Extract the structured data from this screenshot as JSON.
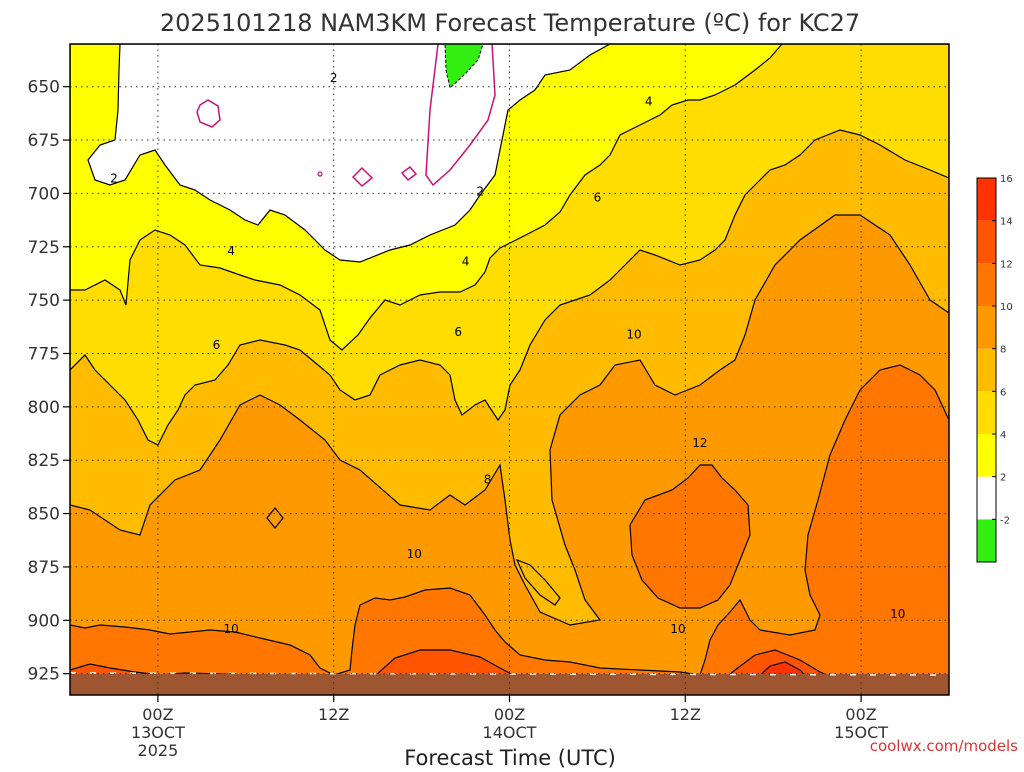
{
  "chart_data": {
    "type": "heatmap",
    "title": "2025101218 NAM3KM Forecast Temperature (ºC) for KC27",
    "xlabel": "Forecast Time (UTC)",
    "ylabel": "",
    "credit": "coolwx.com/models",
    "x_ticks": [
      {
        "hours": 6,
        "lines": [
          "00Z",
          "13OCT",
          "2025"
        ]
      },
      {
        "hours": 18,
        "lines": [
          "12Z"
        ]
      },
      {
        "hours": 30,
        "lines": [
          "00Z",
          "14OCT"
        ]
      },
      {
        "hours": 42,
        "lines": [
          "12Z"
        ]
      },
      {
        "hours": 54,
        "lines": [
          "00Z",
          "15OCT"
        ]
      }
    ],
    "xlim_hours": [
      0,
      60
    ],
    "y_ticks": [
      650,
      675,
      700,
      725,
      750,
      775,
      800,
      825,
      850,
      875,
      900,
      925
    ],
    "ylim_hpa": [
      630,
      935
    ],
    "surface_pressure_hpa": 926,
    "colorbar": {
      "levels": [
        -2,
        2,
        4,
        6,
        8,
        10,
        12,
        14,
        16
      ],
      "colors": [
        "#33ee11",
        "#ffffff",
        "#ffff00",
        "#ffdd00",
        "#ffbb00",
        "#ff9900",
        "#ff7700",
        "#ff5500",
        "#ff3300"
      ]
    },
    "contour_labels": [
      {
        "text": "2",
        "hours": 18.0,
        "hpa": 646
      },
      {
        "text": "2",
        "hours": 3.0,
        "hpa": 693
      },
      {
        "text": "2",
        "hours": 28.0,
        "hpa": 699
      },
      {
        "text": "4",
        "hours": 39.5,
        "hpa": 657
      },
      {
        "text": "4",
        "hours": 11.0,
        "hpa": 727
      },
      {
        "text": "4",
        "hours": 27.0,
        "hpa": 732
      },
      {
        "text": "6",
        "hours": 36.0,
        "hpa": 702
      },
      {
        "text": "6",
        "hours": 10.0,
        "hpa": 771
      },
      {
        "text": "6",
        "hours": 26.5,
        "hpa": 765
      },
      {
        "text": "8",
        "hours": 28.5,
        "hpa": 834
      },
      {
        "text": "10",
        "hours": 38.5,
        "hpa": 766
      },
      {
        "text": "10",
        "hours": 23.5,
        "hpa": 869
      },
      {
        "text": "10",
        "hours": 11.0,
        "hpa": 904
      },
      {
        "text": "10",
        "hours": 41.5,
        "hpa": 904
      },
      {
        "text": "10",
        "hours": 56.5,
        "hpa": 897
      },
      {
        "text": "12",
        "hours": 43.0,
        "hpa": 817
      }
    ]
  }
}
